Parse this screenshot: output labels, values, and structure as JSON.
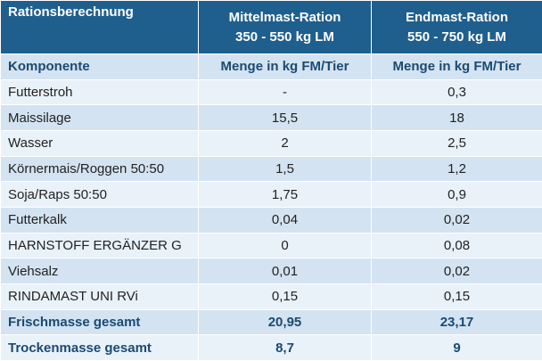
{
  "table": {
    "header": [
      [
        "Rationsberechnung"
      ],
      [
        "Mittelmast-Ration",
        "350 - 550 kg LM"
      ],
      [
        "Endmast-Ration",
        "550 - 750 kg LM"
      ]
    ],
    "subheader": [
      "Komponente",
      "Menge in kg FM/Tier",
      "Menge in kg FM/Tier"
    ],
    "rows": [
      [
        "Futterstroh",
        "-",
        "0,3"
      ],
      [
        "Maissilage",
        "15,5",
        "18"
      ],
      [
        "Wasser",
        "2",
        "2,5"
      ],
      [
        "Körnermais/Roggen 50:50",
        "1,5",
        "1,2"
      ],
      [
        "Soja/Raps 50:50",
        "1,75",
        "0,9"
      ],
      [
        "Futterkalk",
        "0,04",
        "0,02"
      ],
      [
        "HARNSTOFF ERGÄNZER G",
        "0",
        "0,08"
      ],
      [
        "Viehsalz",
        "0,01",
        "0,02"
      ],
      [
        "RINDAMAST UNI RVi",
        "0,15",
        "0,15"
      ]
    ],
    "totals": [
      [
        "Frischmasse gesamt",
        "20,95",
        "23,17"
      ],
      [
        "Trockenmasse gesamt",
        "8,7",
        "9"
      ]
    ]
  }
}
